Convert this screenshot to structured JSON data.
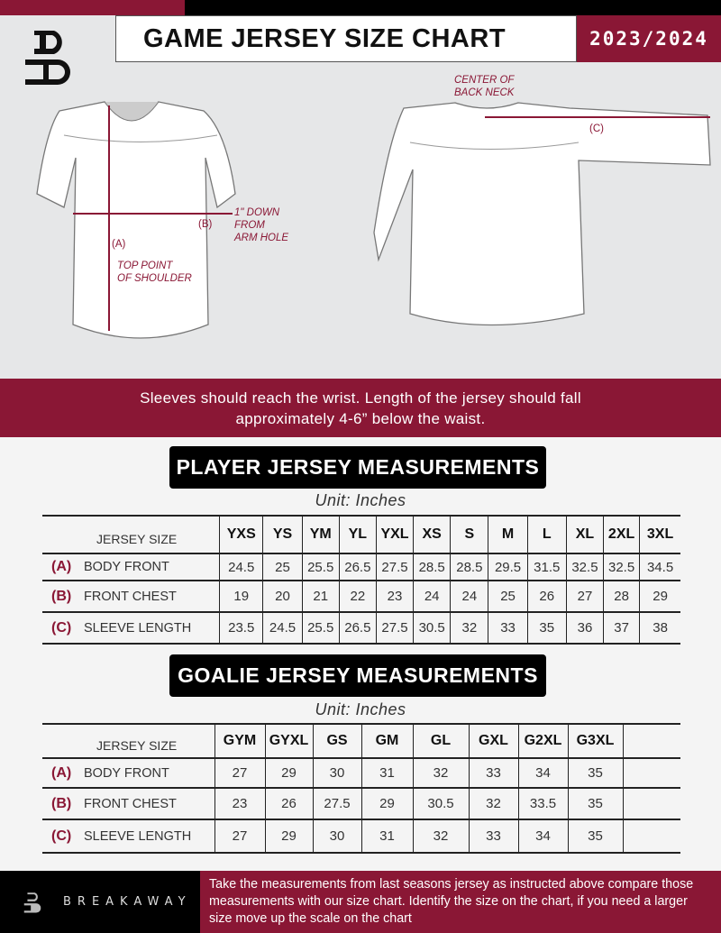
{
  "header": {
    "title": "GAME JERSEY SIZE CHART",
    "season": "2023/2024"
  },
  "diagram": {
    "label_a": "(A)",
    "label_b": "(B)",
    "label_c": "(C)",
    "note_shoulder": [
      "TOP POINT",
      "OF SHOULDER"
    ],
    "note_armhole": [
      "1\" DOWN",
      "FROM",
      "ARM HOLE"
    ],
    "note_neck": [
      "CENTER OF",
      "BACK NECK"
    ]
  },
  "banner": {
    "lines": [
      "Sleeves should reach the wrist. Length of the jersey should fall",
      "approximately 4-6” below the waist."
    ]
  },
  "player": {
    "title": "PLAYER JERSEY MEASUREMENTS",
    "unit": "Unit: Inches",
    "header_label": "JERSEY SIZE",
    "sizes": [
      "YXS",
      "YS",
      "YM",
      "YL",
      "YXL",
      "XS",
      "S",
      "M",
      "L",
      "XL",
      "2XL",
      "3XL"
    ],
    "rows": [
      {
        "letter": "(A)",
        "label": "BODY FRONT",
        "values": [
          "24.5",
          "25",
          "25.5",
          "26.5",
          "27.5",
          "28.5",
          "28.5",
          "29.5",
          "31.5",
          "32.5",
          "32.5",
          "34.5"
        ]
      },
      {
        "letter": "(B)",
        "label": "FRONT CHEST",
        "values": [
          "19",
          "20",
          "21",
          "22",
          "23",
          "24",
          "24",
          "25",
          "26",
          "27",
          "28",
          "29"
        ]
      },
      {
        "letter": "(C)",
        "label": "SLEEVE LENGTH",
        "values": [
          "23.5",
          "24.5",
          "25.5",
          "26.5",
          "27.5",
          "30.5",
          "32",
          "33",
          "35",
          "36",
          "37",
          "38"
        ]
      }
    ]
  },
  "goalie": {
    "title": "GOALIE JERSEY MEASUREMENTS",
    "unit": "Unit: Inches",
    "header_label": "JERSEY SIZE",
    "sizes": [
      "GYM",
      "GYXL",
      "GS",
      "GM",
      "GL",
      "GXL",
      "G2XL",
      "G3XL",
      ""
    ],
    "rows": [
      {
        "letter": "(A)",
        "label": "BODY FRONT",
        "values": [
          "27",
          "29",
          "30",
          "31",
          "32",
          "33",
          "34",
          "35",
          ""
        ]
      },
      {
        "letter": "(B)",
        "label": "FRONT CHEST",
        "values": [
          "23",
          "26",
          "27.5",
          "29",
          "30.5",
          "32",
          "33.5",
          "35",
          ""
        ]
      },
      {
        "letter": "(C)",
        "label": "SLEEVE LENGTH",
        "values": [
          "27",
          "29",
          "30",
          "31",
          "32",
          "33",
          "34",
          "35",
          ""
        ]
      }
    ]
  },
  "footer": {
    "brand": "BREAKAWAY",
    "text": "Take the measurements from last seasons jersey as instructed above compare those measurements  with our size chart. Identify the size on the chart, if you need a larger size move up the scale on the chart"
  },
  "colors": {
    "accent": "#8a1735",
    "dark": "#000000",
    "background": "#e6e7e8"
  }
}
